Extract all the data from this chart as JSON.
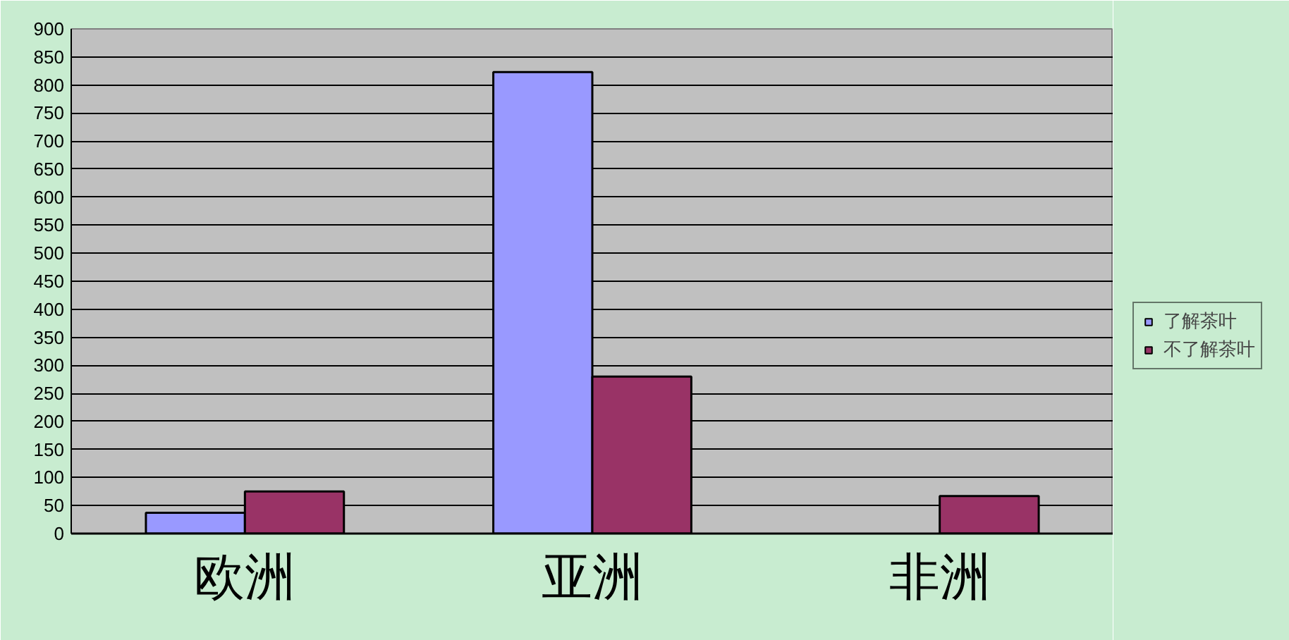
{
  "chart_data": {
    "type": "bar",
    "categories": [
      "欧洲",
      "亚洲",
      "非洲"
    ],
    "series": [
      {
        "name": "了解茶叶",
        "color": "#9999ff",
        "values": [
          37,
          823,
          null
        ]
      },
      {
        "name": "不了解茶叶",
        "color": "#993366",
        "values": [
          75,
          280,
          67
        ]
      }
    ],
    "ylim": [
      0,
      900
    ],
    "yticks": [
      0,
      50,
      100,
      150,
      200,
      250,
      300,
      350,
      400,
      450,
      500,
      550,
      600,
      650,
      700,
      750,
      800,
      850,
      900
    ],
    "grid": "y",
    "legend": "right"
  }
}
